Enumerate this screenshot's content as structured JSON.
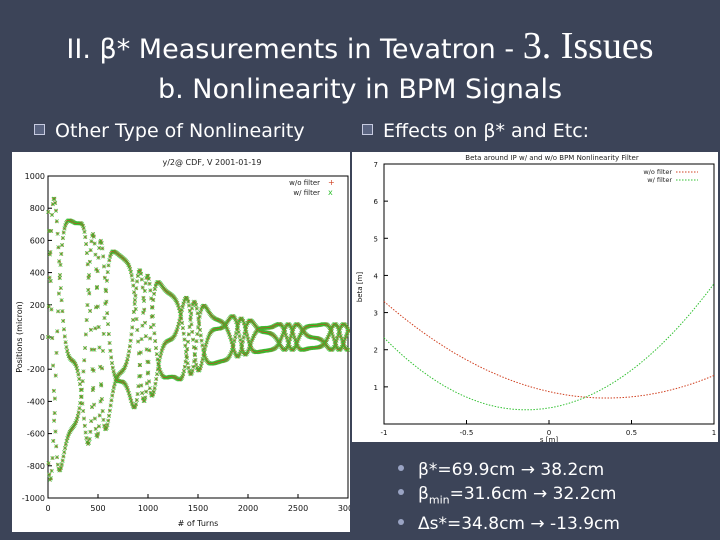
{
  "slide": {
    "title_part1": "II. β* Measurements in Tevatron -",
    "title_part2": "3. Issues",
    "subtitle": "b. Nonlinearity in BPM Signals",
    "left_heading": "Other Type of Nonlinearity",
    "right_heading": "Effects on β* and Etc:",
    "results": [
      {
        "pre": "β*=69.9cm → 38.2cm",
        "sub": "",
        "post": ""
      },
      {
        "pre": "β",
        "sub": "min",
        "post": "=31.6cm → 32.2cm"
      },
      {
        "pre": "Δs*=34.8cm → -13.9cm",
        "sub": "",
        "post": ""
      }
    ]
  },
  "chart_data": [
    {
      "type": "scatter",
      "title": "y/2@ CDF, V 2001-01-19",
      "xlabel": "# of Turns",
      "ylabel": "Positions (micron)",
      "xlim": [
        0,
        3000
      ],
      "ylim": [
        -1000,
        1000
      ],
      "x_ticks": [
        0,
        500,
        1000,
        1500,
        2000,
        2500,
        3000
      ],
      "y_ticks": [
        1000,
        800,
        600,
        400,
        200,
        0,
        -200,
        -400,
        -600,
        -800,
        -1000
      ],
      "legend": "top-right",
      "series": [
        {
          "name": "w/o filter",
          "color": "#d04020",
          "marker": "+"
        },
        {
          "name": "w/ filter",
          "color": "#30c030",
          "marker": "x"
        }
      ],
      "envelope": {
        "initial_amplitude": 900,
        "final_amplitude": 80
      }
    },
    {
      "type": "line",
      "title": "Beta around IP w/ and w/o BPM Nonlinearity Filter",
      "xlabel": "s [m]",
      "ylabel": "beta [m]",
      "xlim": [
        -1,
        1
      ],
      "ylim": [
        0,
        7
      ],
      "x_ticks": [
        -1,
        -0.5,
        0,
        0.5,
        1
      ],
      "x_tick_labels": [
        "-1",
        "-0.5",
        "0",
        "0.5",
        "1"
      ],
      "y_ticks": [
        1,
        2,
        3,
        4,
        5,
        6,
        7
      ],
      "legend": "top-right",
      "series": [
        {
          "name": "w/o filter",
          "color": "#d04020",
          "beta_star": 0.699,
          "s_star": 0.348
        },
        {
          "name": "w/ filter",
          "color": "#30c030",
          "beta_star": 0.382,
          "s_star": -0.139
        }
      ]
    }
  ]
}
